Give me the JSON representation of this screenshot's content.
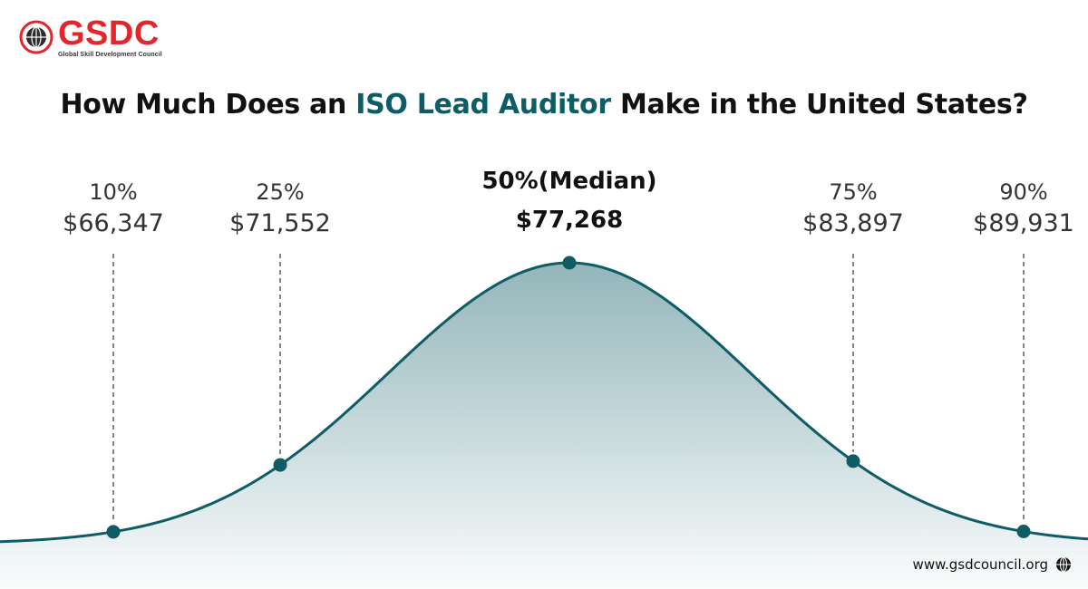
{
  "brand": {
    "name": "GSDC",
    "tagline": "Global Skill Development Council",
    "color": "#e3262c"
  },
  "title": {
    "before": "How Much Does an ",
    "highlight": "ISO Lead Auditor",
    "after": " Make in the United States?",
    "highlight_color": "#0e5c66"
  },
  "chart_data": {
    "type": "area",
    "title": "How Much Does an ISO Lead Auditor Make in the United States?",
    "xlabel": "",
    "ylabel": "",
    "grid": false,
    "legend": "none",
    "curve_color": "#0e5c66",
    "points": [
      {
        "percentile": "10%",
        "value": 66347,
        "label": "$66,347",
        "highlight": false
      },
      {
        "percentile": "25%",
        "value": 71552,
        "label": "$71,552",
        "highlight": false
      },
      {
        "percentile": "50%(Median)",
        "value": 77268,
        "label": "$77,268",
        "highlight": true
      },
      {
        "percentile": "75%",
        "value": 83897,
        "label": "$83,897",
        "highlight": false
      },
      {
        "percentile": "90%",
        "value": 89931,
        "label": "$89,931",
        "highlight": false
      }
    ]
  },
  "footer": {
    "url": "www.gsdcouncil.org",
    "icon": "globe-icon"
  }
}
